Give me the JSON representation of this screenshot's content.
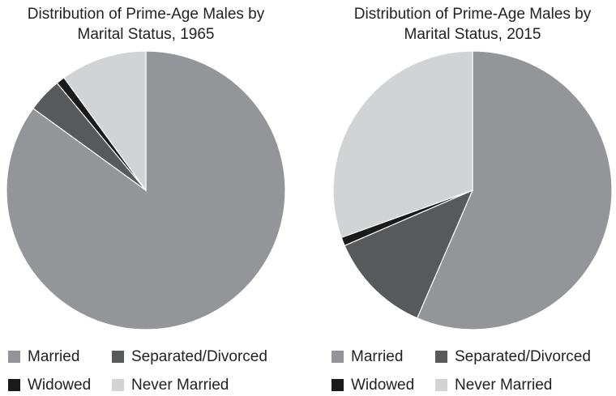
{
  "chart_data": [
    {
      "type": "pie",
      "title": "Distribution of Prime-Age Males by Marital Status, 1965",
      "categories": [
        "Married",
        "Separated/Divorced",
        "Widowed",
        "Never Married"
      ],
      "values": [
        85,
        4,
        1,
        10
      ],
      "colors": [
        "#939598",
        "#58595b",
        "#1a1a1a",
        "#d1d3d4"
      ]
    },
    {
      "type": "pie",
      "title": "Distribution of Prime-Age Males by Marital Status, 2015",
      "categories": [
        "Married",
        "Separated/Divorced",
        "Widowed",
        "Never Married"
      ],
      "values": [
        56.5,
        12,
        1,
        30.5
      ],
      "colors": [
        "#939598",
        "#58595b",
        "#1a1a1a",
        "#d1d3d4"
      ]
    }
  ]
}
